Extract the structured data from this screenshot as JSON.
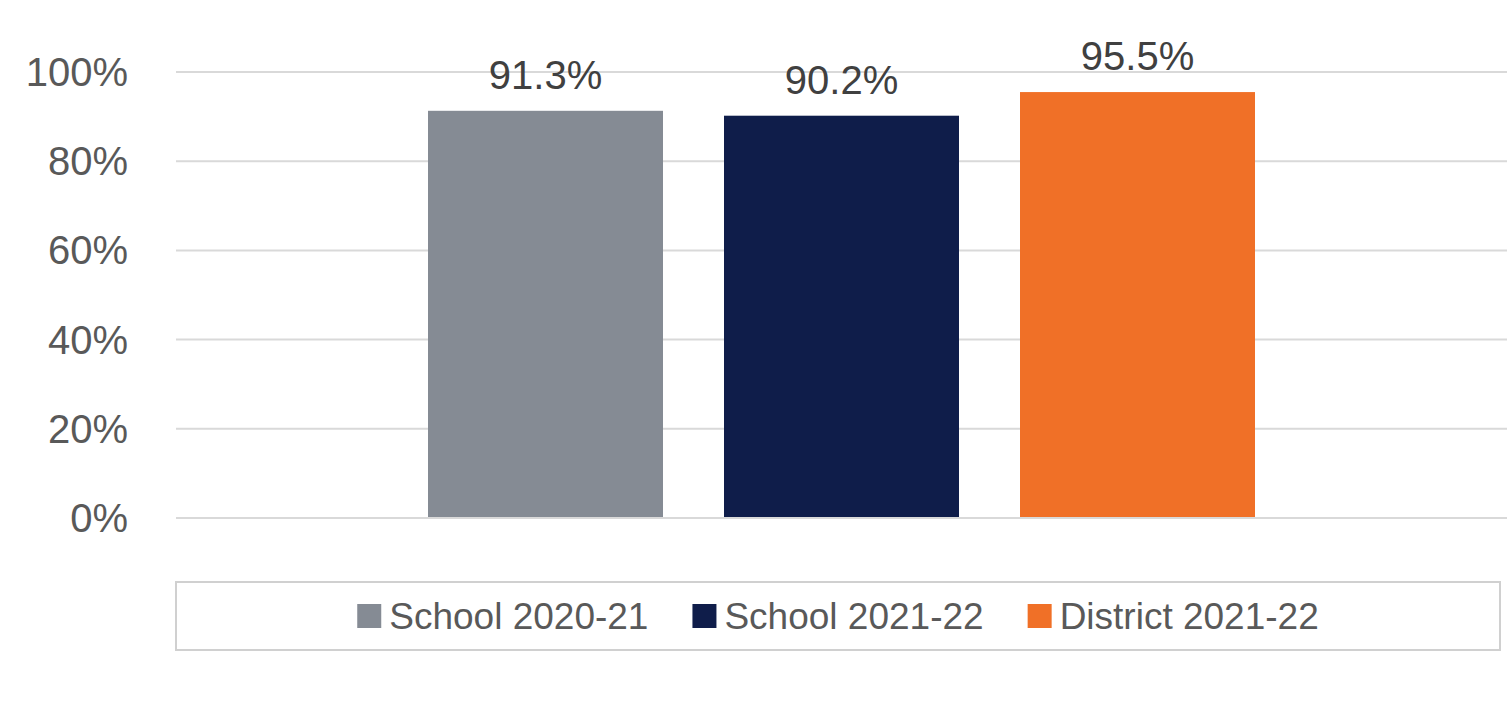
{
  "chart_data": {
    "type": "bar",
    "categories": [
      null
    ],
    "series": [
      {
        "name": "School 2020-21",
        "color": "#858b94",
        "values": [
          91.3
        ],
        "value_labels": [
          "91.3%"
        ]
      },
      {
        "name": "School 2021-22",
        "color": "#0f1d4a",
        "values": [
          90.2
        ],
        "value_labels": [
          "90.2%"
        ]
      },
      {
        "name": "District 2021-22",
        "color": "#f07027",
        "values": [
          95.5
        ],
        "value_labels": [
          "95.5%"
        ]
      }
    ],
    "ylim": [
      0,
      100
    ],
    "yticks": [
      {
        "value": 0,
        "label": "0%"
      },
      {
        "value": 20,
        "label": "20%"
      },
      {
        "value": 40,
        "label": "40%"
      },
      {
        "value": 60,
        "label": "60%"
      },
      {
        "value": 80,
        "label": "80%"
      },
      {
        "value": 100,
        "label": "100%"
      }
    ],
    "grid": true,
    "data_labels": true,
    "legend": "bottom"
  }
}
